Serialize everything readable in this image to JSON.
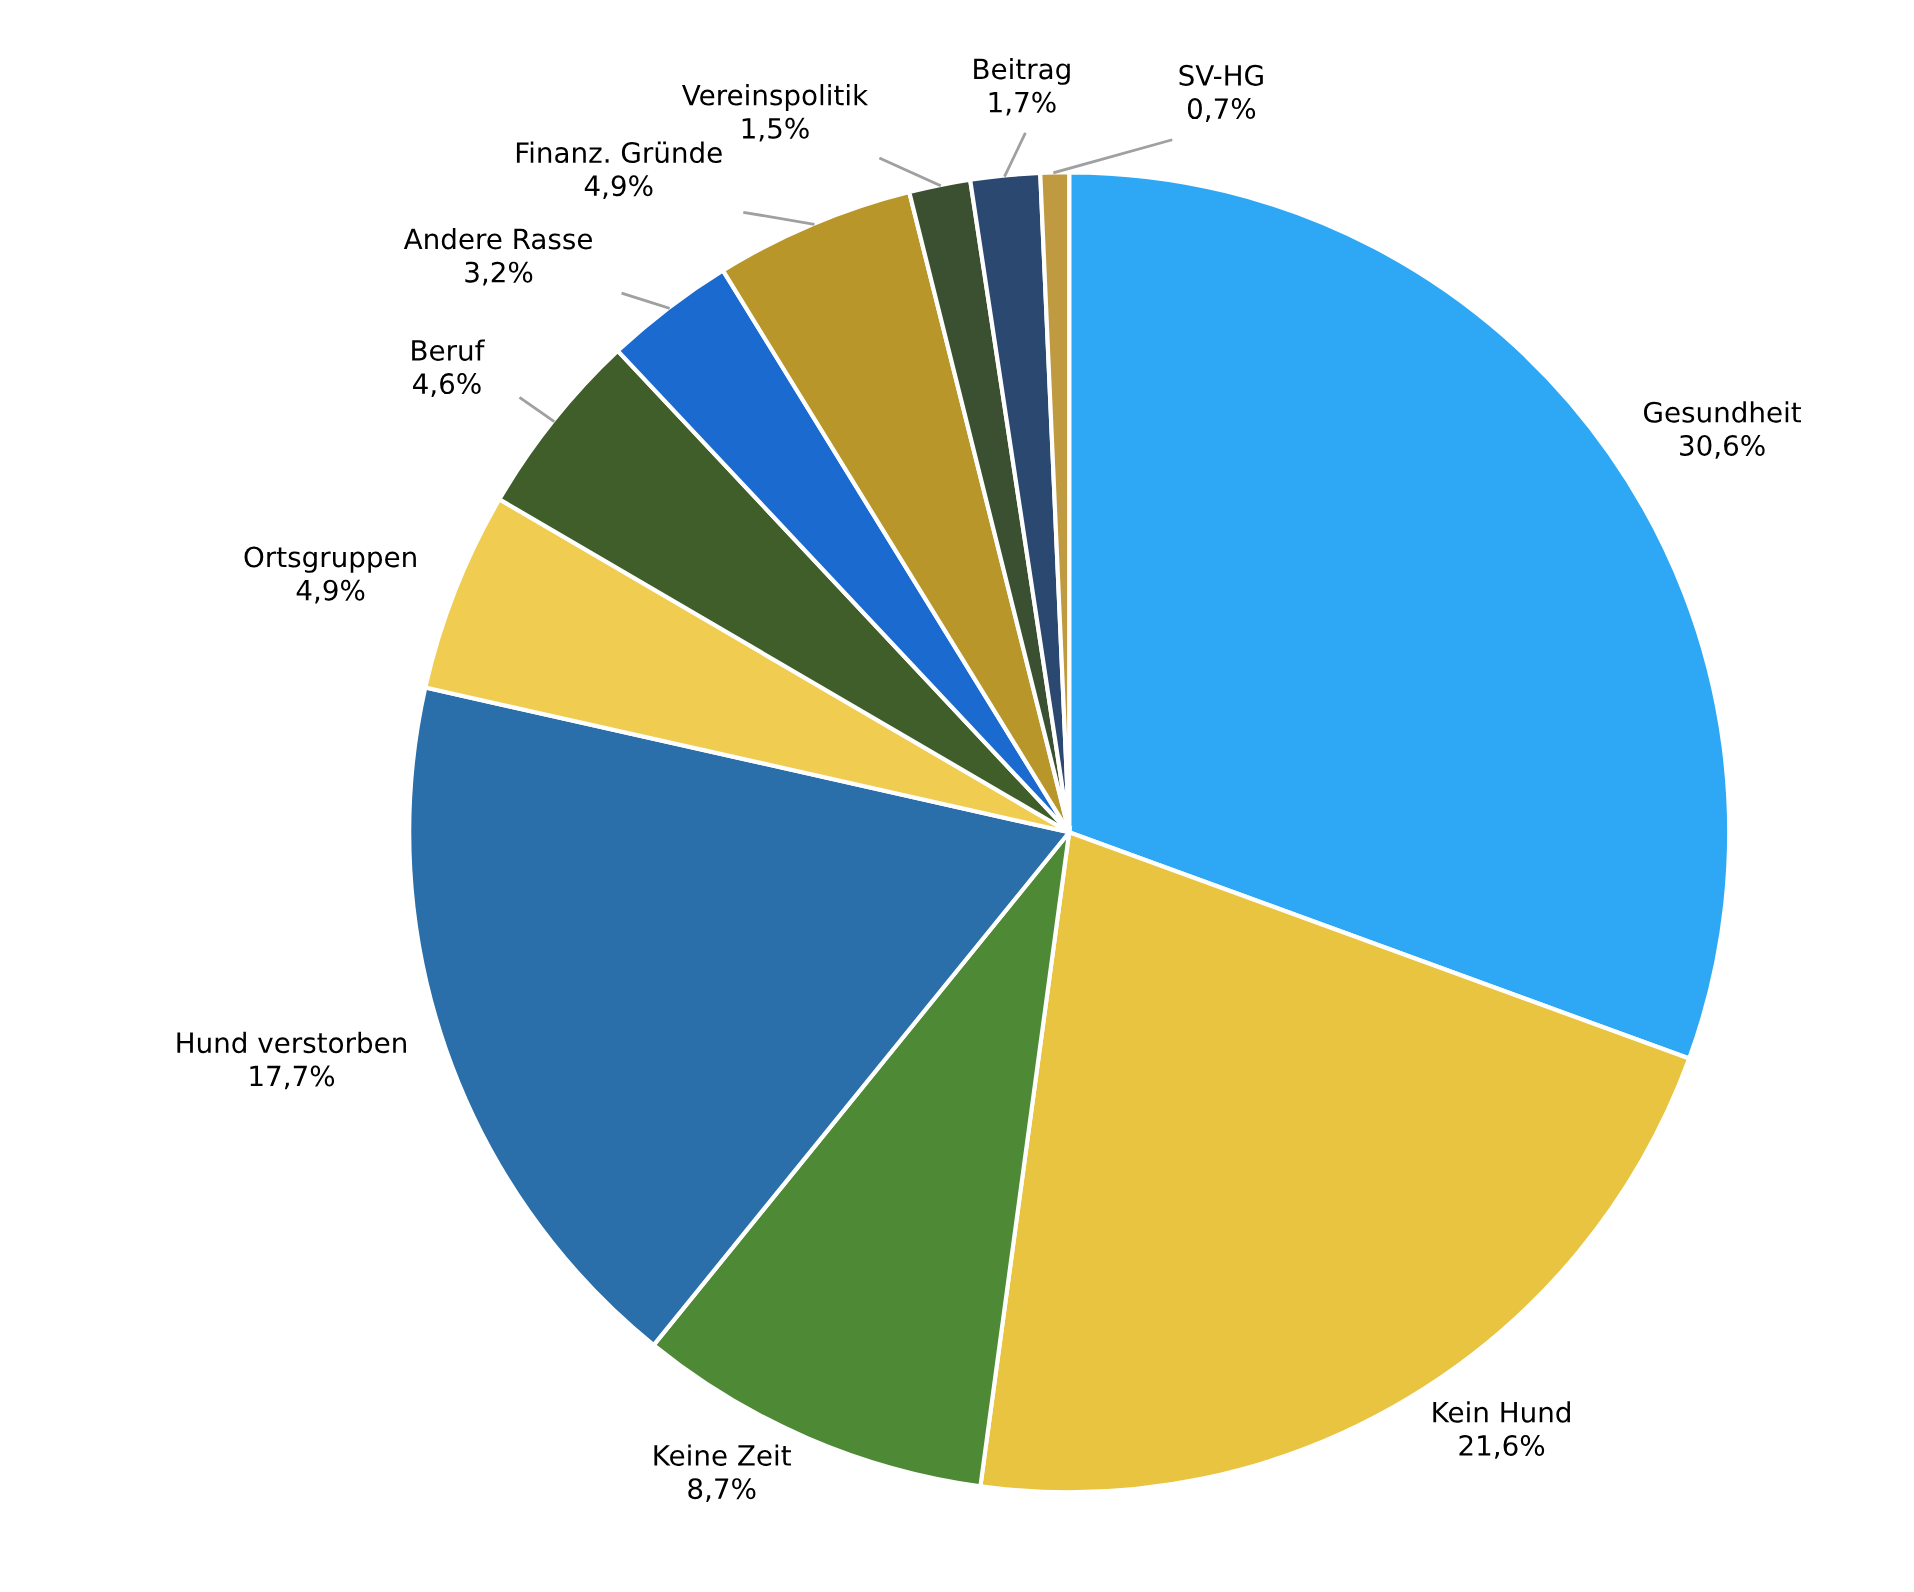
{
  "chart_data": {
    "type": "pie",
    "categories": [
      "Gesundheit",
      "Kein Hund",
      "Keine Zeit",
      "Hund verstorben",
      "Ortsgruppen",
      "Beruf",
      "Andere Rasse",
      "Finanz. Gründe",
      "Vereinspolitik",
      "Beitrag",
      "SV-HG"
    ],
    "values": [
      30.6,
      21.6,
      8.7,
      17.7,
      4.9,
      4.6,
      3.2,
      4.9,
      1.5,
      1.7,
      0.7
    ],
    "value_labels": [
      "30,6%",
      "21,6%",
      "8,7%",
      "17,7%",
      "4,9%",
      "4,6%",
      "3,2%",
      "4,9%",
      "1,5%",
      "1,7%",
      "0,7%"
    ],
    "colors": [
      "#2ea8f5",
      "#e8c440",
      "#4e8a36",
      "#2a6eaa",
      "#f0cc50",
      "#3f5e2a",
      "#1a6ad0",
      "#b8962a",
      "#3a5030",
      "#2a4870",
      "#c09a40"
    ],
    "legend": false
  }
}
